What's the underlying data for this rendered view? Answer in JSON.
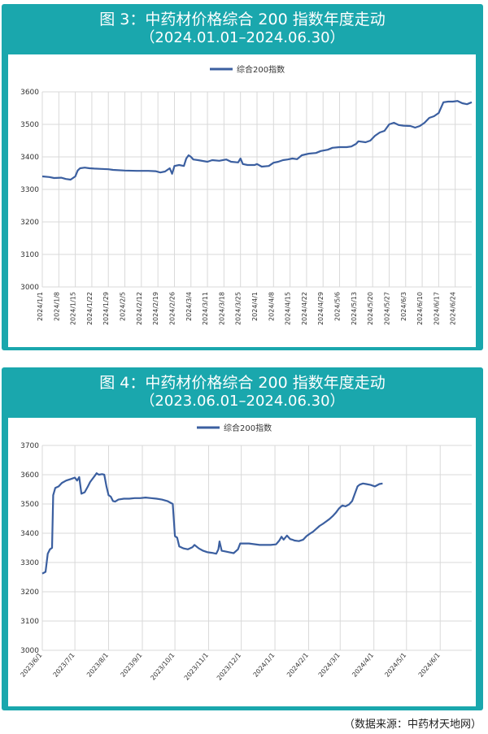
{
  "charts": [
    {
      "title": "图 3：中药材价格综合 200 指数年度走动",
      "subtitle": "（2024.01.01–2024.06.30）",
      "chart_data": {
        "type": "line",
        "legend": "top-center",
        "grid": "both",
        "series": [
          {
            "name": "综合200指数",
            "color": "#3b5fa0",
            "points": [
              [
                0,
                3340
              ],
              [
                3,
                3338
              ],
              [
                5,
                3335
              ],
              [
                8,
                3336
              ],
              [
                10,
                3332
              ],
              [
                12,
                3330
              ],
              [
                14,
                3340
              ],
              [
                15,
                3358
              ],
              [
                16,
                3365
              ],
              [
                18,
                3367
              ],
              [
                20,
                3365
              ],
              [
                22,
                3364
              ],
              [
                25,
                3363
              ],
              [
                28,
                3362
              ],
              [
                30,
                3360
              ],
              [
                35,
                3358
              ],
              [
                40,
                3357
              ],
              [
                45,
                3357
              ],
              [
                48,
                3356
              ],
              [
                50,
                3352
              ],
              [
                52,
                3355
              ],
              [
                54,
                3365
              ],
              [
                55,
                3348
              ],
              [
                56,
                3372
              ],
              [
                58,
                3375
              ],
              [
                60,
                3372
              ],
              [
                61,
                3395
              ],
              [
                62,
                3405
              ],
              [
                63,
                3400
              ],
              [
                64,
                3392
              ],
              [
                66,
                3390
              ],
              [
                70,
                3385
              ],
              [
                72,
                3390
              ],
              [
                75,
                3388
              ],
              [
                78,
                3392
              ],
              [
                80,
                3385
              ],
              [
                83,
                3383
              ],
              [
                84,
                3395
              ],
              [
                85,
                3378
              ],
              [
                87,
                3375
              ],
              [
                90,
                3375
              ],
              [
                91,
                3378
              ],
              [
                93,
                3370
              ],
              [
                96,
                3372
              ],
              [
                98,
                3382
              ],
              [
                100,
                3385
              ],
              [
                102,
                3390
              ],
              [
                104,
                3392
              ],
              [
                106,
                3395
              ],
              [
                108,
                3393
              ],
              [
                110,
                3405
              ],
              [
                113,
                3410
              ],
              [
                116,
                3412
              ],
              [
                118,
                3418
              ],
              [
                121,
                3422
              ],
              [
                123,
                3428
              ],
              [
                126,
                3430
              ],
              [
                129,
                3430
              ],
              [
                131,
                3432
              ],
              [
                133,
                3440
              ],
              [
                134,
                3448
              ],
              [
                137,
                3445
              ],
              [
                139,
                3450
              ],
              [
                141,
                3465
              ],
              [
                143,
                3475
              ],
              [
                145,
                3480
              ],
              [
                147,
                3500
              ],
              [
                149,
                3505
              ],
              [
                151,
                3498
              ],
              [
                153,
                3496
              ],
              [
                156,
                3495
              ],
              [
                158,
                3490
              ],
              [
                160,
                3495
              ],
              [
                162,
                3505
              ],
              [
                164,
                3520
              ],
              [
                166,
                3525
              ],
              [
                168,
                3535
              ],
              [
                170,
                3568
              ],
              [
                172,
                3570
              ],
              [
                174,
                3570
              ],
              [
                176,
                3572
              ],
              [
                178,
                3565
              ],
              [
                180,
                3562
              ],
              [
                182,
                3568
              ]
            ]
          }
        ],
        "x_ticks": [
          "2024/1/1",
          "2024/1/8",
          "2024/1/15",
          "2024/1/22",
          "2024/1/29",
          "2024/2/5",
          "2024/2/12",
          "2024/2/19",
          "2024/2/26",
          "2024/3/4",
          "2024/3/11",
          "2024/3/18",
          "2024/3/25",
          "2024/4/1",
          "2024/4/8",
          "2024/4/15",
          "2024/4/22",
          "2024/4/29",
          "2024/5/6",
          "2024/5/13",
          "2024/5/20",
          "2024/5/27",
          "2024/6/3",
          "2024/6/10",
          "2024/6/17",
          "2024/6/24"
        ],
        "tick_step_days": 7,
        "xlim": [
          0,
          182
        ],
        "ylim": [
          3000,
          3600
        ],
        "yticks": [
          3000,
          3100,
          3200,
          3300,
          3400,
          3500,
          3600
        ]
      }
    },
    {
      "title": "图 4：中药材价格综合 200 指数年度走动",
      "subtitle": "（2023.06.01–2024.06.30）",
      "chart_data": {
        "type": "line",
        "legend": "top-center",
        "grid": "both",
        "series": [
          {
            "name": "综合200指数",
            "color": "#3b5fa0",
            "points": [
              [
                0,
                3262
              ],
              [
                3,
                3268
              ],
              [
                5,
                3330
              ],
              [
                7,
                3345
              ],
              [
                9,
                3350
              ],
              [
                10,
                3530
              ],
              [
                12,
                3555
              ],
              [
                15,
                3560
              ],
              [
                18,
                3572
              ],
              [
                22,
                3580
              ],
              [
                26,
                3585
              ],
              [
                30,
                3590
              ],
              [
                32,
                3580
              ],
              [
                34,
                3592
              ],
              [
                36,
                3535
              ],
              [
                39,
                3540
              ],
              [
                42,
                3560
              ],
              [
                44,
                3575
              ],
              [
                46,
                3585
              ],
              [
                48,
                3595
              ],
              [
                50,
                3605
              ],
              [
                52,
                3600
              ],
              [
                55,
                3602
              ],
              [
                57,
                3600
              ],
              [
                59,
                3560
              ],
              [
                61,
                3530
              ],
              [
                63,
                3525
              ],
              [
                65,
                3510
              ],
              [
                67,
                3508
              ],
              [
                70,
                3515
              ],
              [
                75,
                3518
              ],
              [
                80,
                3518
              ],
              [
                85,
                3520
              ],
              [
                90,
                3520
              ],
              [
                95,
                3522
              ],
              [
                100,
                3520
              ],
              [
                105,
                3518
              ],
              [
                110,
                3515
              ],
              [
                115,
                3510
              ],
              [
                120,
                3500
              ],
              [
                122,
                3390
              ],
              [
                124,
                3385
              ],
              [
                126,
                3355
              ],
              [
                130,
                3348
              ],
              [
                134,
                3345
              ],
              [
                138,
                3352
              ],
              [
                140,
                3360
              ],
              [
                144,
                3348
              ],
              [
                148,
                3340
              ],
              [
                152,
                3335
              ],
              [
                156,
                3333
              ],
              [
                160,
                3330
              ],
              [
                162,
                3345
              ],
              [
                163,
                3372
              ],
              [
                165,
                3340
              ],
              [
                168,
                3338
              ],
              [
                172,
                3335
              ],
              [
                176,
                3332
              ],
              [
                180,
                3345
              ],
              [
                182,
                3365
              ],
              [
                190,
                3365
              ],
              [
                200,
                3360
              ],
              [
                210,
                3360
              ],
              [
                215,
                3362
              ],
              [
                218,
                3375
              ],
              [
                220,
                3388
              ],
              [
                222,
                3378
              ],
              [
                225,
                3392
              ],
              [
                228,
                3380
              ],
              [
                230,
                3378
              ],
              [
                232,
                3375
              ],
              [
                236,
                3373
              ],
              [
                240,
                3378
              ],
              [
                243,
                3390
              ],
              [
                246,
                3398
              ],
              [
                249,
                3405
              ],
              [
                252,
                3415
              ],
              [
                255,
                3425
              ],
              [
                258,
                3432
              ],
              [
                261,
                3440
              ],
              [
                264,
                3448
              ],
              [
                267,
                3458
              ],
              [
                270,
                3470
              ],
              [
                273,
                3485
              ],
              [
                276,
                3495
              ],
              [
                279,
                3492
              ],
              [
                282,
                3498
              ],
              [
                285,
                3510
              ],
              [
                287,
                3530
              ],
              [
                290,
                3560
              ],
              [
                292,
                3566
              ],
              [
                295,
                3570
              ],
              [
                298,
                3568
              ],
              [
                302,
                3565
              ],
              [
                306,
                3560
              ],
              [
                310,
                3568
              ],
              [
                313,
                3570
              ]
            ]
          }
        ],
        "x_ticks": [
          "2023/6/1",
          "2023/7/1",
          "2023/8/1",
          "2023/9/1",
          "2023/10/1",
          "2023/11/1",
          "2023/12/1",
          "2024/1/1",
          "2024/2/1",
          "2024/3/1",
          "2024/4/1",
          "2024/5/1",
          "2024/6/1"
        ],
        "x_tick_positions": [
          0,
          30,
          61,
          92,
          122,
          153,
          183,
          214,
          245,
          274,
          305,
          335,
          366
        ],
        "xlim": [
          0,
          395
        ],
        "ylim": [
          3000,
          3700
        ],
        "yticks": [
          3000,
          3100,
          3200,
          3300,
          3400,
          3500,
          3600,
          3700
        ]
      }
    }
  ],
  "source": "（数据来源：中药材天地网）"
}
